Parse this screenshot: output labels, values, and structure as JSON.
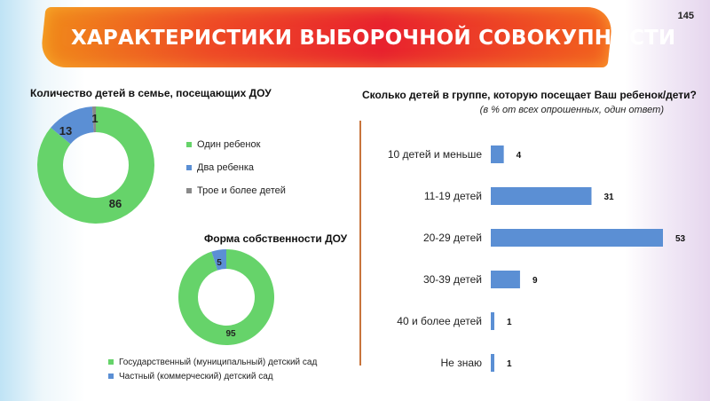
{
  "slide": {
    "title": "ХАРАКТЕРИСТИКИ ВЫБОРОЧНОЙ СОВОКУПНОСТИ",
    "page_number": "145"
  },
  "colors": {
    "green": "#66d36a",
    "blue": "#5b8fd4",
    "gray": "#8a8a8a",
    "bar": "#5b8fd4",
    "divider": "#c8743c",
    "banner": "#e8222e"
  },
  "chart_data": [
    {
      "type": "pie",
      "title": "Количество детей в семье, посещающих ДОУ",
      "categories": [
        "Один ребенок",
        "Два ребенка",
        "Трое и более детей"
      ],
      "values": [
        86,
        13,
        1
      ],
      "colors": [
        "#66d36a",
        "#5b8fd4",
        "#8a8a8a"
      ],
      "legend_position": "right"
    },
    {
      "type": "pie",
      "title": "Форма собственности ДОУ",
      "categories": [
        "Государственный (муниципальный) детский сад",
        "Частный (коммерческий) детский сад"
      ],
      "values": [
        95,
        5
      ],
      "colors": [
        "#66d36a",
        "#5b8fd4"
      ],
      "legend_position": "bottom"
    },
    {
      "type": "bar",
      "orientation": "horizontal",
      "title": "Сколько детей в группе, которую посещает Ваш ребенок/дети?",
      "subtitle": "(в % от всех опрошенных, один ответ)",
      "categories": [
        "10 детей и меньше",
        "11-19 детей",
        "20-29 детей",
        "30-39 детей",
        "40 и более детей",
        "Не знаю"
      ],
      "values": [
        4,
        31,
        53,
        9,
        1,
        1
      ],
      "xlim": [
        0,
        53
      ],
      "grid": false
    }
  ]
}
